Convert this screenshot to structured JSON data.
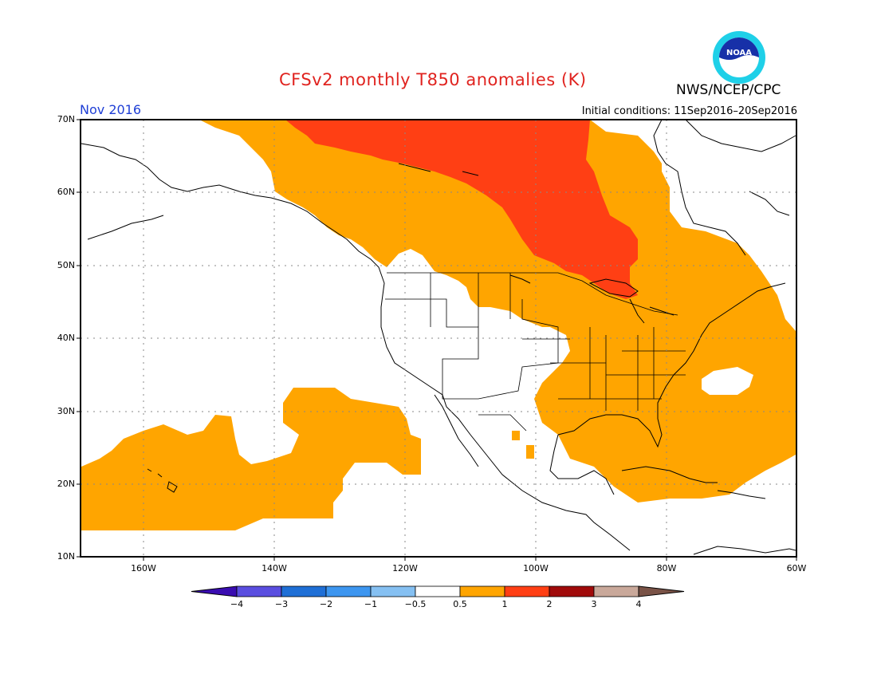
{
  "header": {
    "title": "CFSv2 monthly T850 anomalies (K)",
    "org": "NWS/NCEP/CPC",
    "logo_text": "NOAA",
    "month": "Nov 2016",
    "initial_conditions": "Initial conditions: 11Sep2016–20Sep2016"
  },
  "map": {
    "lat_labels": [
      "70N",
      "60N",
      "50N",
      "40N",
      "30N",
      "20N",
      "10N"
    ],
    "lon_labels": [
      "160W",
      "140W",
      "120W",
      "100W",
      "80W",
      "60W"
    ],
    "lat_range": [
      10,
      70
    ],
    "lon_range": [
      "170W",
      "60W"
    ],
    "colors": {
      "anom_0_5_to_1": "#ffa500",
      "anom_1_to_2": "#ff3f14",
      "neutral": "#ffffff",
      "grid": "#888888",
      "frame": "#000000"
    }
  },
  "colorbar": {
    "labels": [
      "−4",
      "−3",
      "−2",
      "−1",
      "−0.5",
      "0.5",
      "1",
      "2",
      "3",
      "4"
    ],
    "colors": [
      "#3a0db1",
      "#5a4ee0",
      "#1f6fd6",
      "#3d96f0",
      "#85c0f2",
      "#ffffff",
      "#ffa500",
      "#ff3f14",
      "#a00a0a",
      "#c9a89a",
      "#7a5347"
    ]
  }
}
